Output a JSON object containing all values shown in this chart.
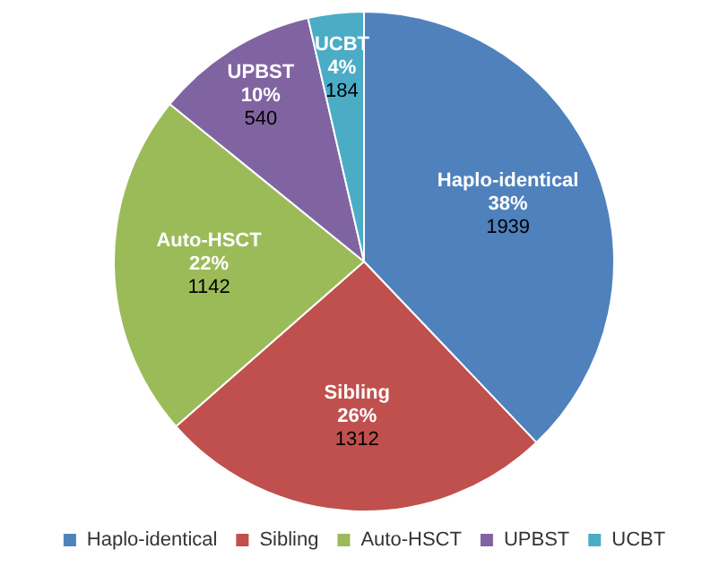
{
  "chart_data": {
    "type": "pie",
    "categories": [
      "Haplo-identical",
      "Sibling",
      "Auto-HSCT",
      "UPBST",
      "UCBT"
    ],
    "values": [
      1939,
      1312,
      1142,
      540,
      184
    ],
    "colors": [
      "#4f81bd",
      "#c0504d",
      "#9bbb59",
      "#8064a2",
      "#4bacc6"
    ],
    "value_labels": [
      "38%\n1939",
      "26%\n1312",
      "22%\n1142",
      "10%\n540",
      "4%\n184"
    ],
    "legend": "bottom"
  }
}
